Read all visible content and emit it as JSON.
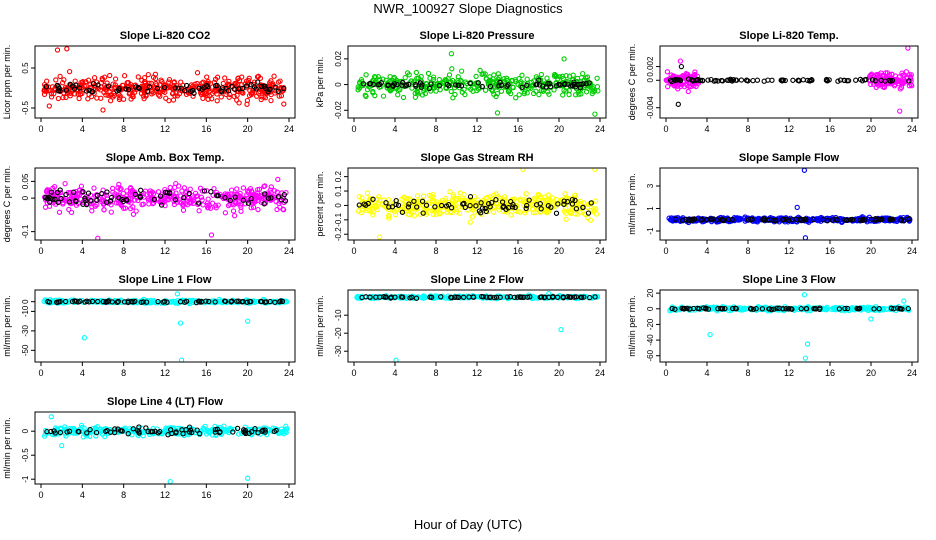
{
  "page": {
    "title": "NWR_100927  Slope Diagnostics",
    "xlabel": "Hour of Day (UTC)"
  },
  "chart_data": [
    {
      "type": "scatter",
      "title": "Slope Li-820 CO2",
      "ylabel": "Licor ppm per min.",
      "xlim": [
        0,
        24
      ],
      "ylim": [
        -0.75,
        1.05
      ],
      "xticks": [
        0,
        4,
        8,
        12,
        16,
        20,
        24
      ],
      "yticks": [
        -0.5,
        0.5
      ],
      "series": [
        {
          "color": "#ff0000",
          "n": 420,
          "spread": 0.38,
          "outliers": [
            [
              1.6,
              0.95
            ],
            [
              2.5,
              0.98
            ],
            [
              0.8,
              -0.45
            ],
            [
              6,
              -0.55
            ],
            [
              23.5,
              -0.4
            ]
          ]
        },
        {
          "color": "#000000",
          "n": 70,
          "spread": 0.15,
          "outliers": []
        }
      ]
    },
    {
      "type": "scatter",
      "title": "Slope Li-820 Pressure",
      "ylabel": "kPa per min.",
      "xlim": [
        0,
        24
      ],
      "ylim": [
        -0.026,
        0.03
      ],
      "xticks": [
        0,
        4,
        8,
        12,
        16,
        20,
        24
      ],
      "yticks": [
        -0.02,
        0.0,
        0.02
      ],
      "series": [
        {
          "color": "#00cc00",
          "n": 360,
          "spread": 0.011,
          "outliers": [
            [
              9.5,
              0.024
            ],
            [
              14,
              -0.022
            ],
            [
              23.5,
              -0.023
            ],
            [
              20.5,
              0.02
            ]
          ]
        },
        {
          "color": "#000000",
          "n": 70,
          "spread": 0.003,
          "outliers": []
        }
      ]
    },
    {
      "type": "scatter",
      "title": "Slope Li-820 Temp.",
      "ylabel": "degrees C per min.",
      "xlim": [
        0,
        24
      ],
      "ylim": [
        -0.0055,
        0.005
      ],
      "xticks": [
        0,
        4,
        8,
        12,
        16,
        20,
        24
      ],
      "yticks": [
        -0.004,
        0.0,
        0.002
      ],
      "series": [
        {
          "color": "#ff00ff",
          "n": 200,
          "spread": 0.0015,
          "outliers": [
            [
              23.6,
              0.0047
            ],
            [
              1.4,
              0.0028
            ],
            [
              22.8,
              -0.0045
            ]
          ],
          "ranges": [
            [
              0,
              3.2
            ],
            [
              19.8,
              24
            ]
          ]
        },
        {
          "color": "#000000",
          "n": 85,
          "spread": 0.0002,
          "outliers": [
            [
              1.2,
              -0.0035
            ],
            [
              1.5,
              0.002
            ]
          ]
        }
      ]
    },
    {
      "type": "scatter",
      "title": "Slope Amb. Box Temp.",
      "ylabel": "degrees C per min.",
      "xlim": [
        0,
        24
      ],
      "ylim": [
        -0.125,
        0.09
      ],
      "xticks": [
        0,
        4,
        8,
        12,
        16,
        20,
        24
      ],
      "yticks": [
        -0.1,
        0.0,
        0.05
      ],
      "series": [
        {
          "color": "#ff00ff",
          "n": 420,
          "spread": 0.045,
          "outliers": [
            [
              5.5,
              -0.12
            ],
            [
              16.5,
              -0.11
            ]
          ]
        },
        {
          "color": "#000000",
          "n": 70,
          "spread": 0.03,
          "outliers": []
        }
      ]
    },
    {
      "type": "scatter",
      "title": "Slope Gas Stream RH",
      "ylabel": "percent per min.",
      "xlim": [
        0,
        24
      ],
      "ylim": [
        -0.24,
        0.26
      ],
      "xticks": [
        0,
        4,
        8,
        12,
        16,
        20,
        24
      ],
      "yticks": [
        -0.2,
        -0.1,
        0.0,
        0.1,
        0.2
      ],
      "series": [
        {
          "color": "#ffff00",
          "n": 420,
          "spread": 0.1,
          "outliers": [
            [
              16.5,
              0.25
            ],
            [
              23.5,
              0.25
            ],
            [
              2.5,
              -0.22
            ]
          ]
        },
        {
          "color": "#000000",
          "n": 70,
          "spread": 0.06,
          "outliers": []
        }
      ]
    },
    {
      "type": "scatter",
      "title": "Slope Sample Flow",
      "ylabel": "ml/min per min.",
      "xlim": [
        0,
        24
      ],
      "ylim": [
        -1.8,
        4.6
      ],
      "xticks": [
        0,
        4,
        8,
        12,
        16,
        20,
        24
      ],
      "yticks": [
        -1,
        1,
        3
      ],
      "series": [
        {
          "color": "#0000ff",
          "n": 420,
          "spread": 0.25,
          "outliers": [
            [
              13.5,
              4.4
            ],
            [
              13.6,
              -1.6
            ],
            [
              12.8,
              1.1
            ]
          ]
        },
        {
          "color": "#000000",
          "n": 80,
          "spread": 0.12,
          "outliers": []
        }
      ]
    },
    {
      "type": "scatter",
      "title": "Slope Line 1 Flow",
      "ylabel": "ml/min per min.",
      "xlim": [
        0,
        24
      ],
      "ylim": [
        -62,
        12
      ],
      "xticks": [
        0,
        4,
        8,
        12,
        16,
        20,
        24
      ],
      "yticks": [
        -50,
        -30,
        -10,
        0
      ],
      "series": [
        {
          "color": "#00ffff",
          "n": 280,
          "spread": 2.2,
          "outliers": [
            [
              13.6,
              -60
            ],
            [
              4.2,
              -37
            ],
            [
              20,
              -20
            ],
            [
              13.5,
              -22
            ],
            [
              13.2,
              8
            ]
          ]
        },
        {
          "color": "#000000",
          "n": 70,
          "spread": 1.0,
          "outliers": []
        }
      ]
    },
    {
      "type": "scatter",
      "title": "Slope Line 2 Flow",
      "ylabel": "ml/min per min.",
      "xlim": [
        0,
        24
      ],
      "ylim": [
        -36,
        4
      ],
      "xticks": [
        0,
        4,
        8,
        12,
        16,
        20,
        24
      ],
      "yticks": [
        -30,
        -20,
        -10
      ],
      "series": [
        {
          "color": "#00ffff",
          "n": 280,
          "spread": 0.9,
          "outliers": [
            [
              4.1,
              -35
            ],
            [
              20.2,
              -18
            ],
            [
              19,
              2
            ]
          ]
        },
        {
          "color": "#000000",
          "n": 70,
          "spread": 0.5,
          "outliers": []
        }
      ]
    },
    {
      "type": "scatter",
      "title": "Slope Line 3 Flow",
      "ylabel": "ml/min per min.",
      "xlim": [
        0,
        24
      ],
      "ylim": [
        -68,
        24
      ],
      "xticks": [
        0,
        4,
        8,
        12,
        16,
        20,
        24
      ],
      "yticks": [
        -60,
        -40,
        -20,
        0,
        20
      ],
      "series": [
        {
          "color": "#00ffff",
          "n": 300,
          "spread": 3.0,
          "outliers": [
            [
              13.6,
              -63
            ],
            [
              13.8,
              -45
            ],
            [
              4.3,
              -33
            ],
            [
              13.5,
              18
            ],
            [
              20,
              -13
            ],
            [
              23.2,
              10
            ]
          ]
        },
        {
          "color": "#000000",
          "n": 70,
          "spread": 1.2,
          "outliers": []
        }
      ]
    },
    {
      "type": "scatter",
      "title": "Slope Line 4 (LT) Flow",
      "ylabel": "ml/min per min.",
      "xlim": [
        0,
        24
      ],
      "ylim": [
        -1.1,
        0.4
      ],
      "xticks": [
        0,
        4,
        8,
        12,
        16,
        20,
        24
      ],
      "yticks": [
        -1.0,
        -0.5,
        0.0
      ],
      "series": [
        {
          "color": "#00ffff",
          "n": 320,
          "spread": 0.11,
          "outliers": [
            [
              12.5,
              -1.05
            ],
            [
              20,
              -0.98
            ],
            [
              1,
              0.3
            ],
            [
              2,
              -0.3
            ]
          ]
        },
        {
          "color": "#000000",
          "n": 70,
          "spread": 0.09,
          "outliers": []
        }
      ]
    }
  ]
}
